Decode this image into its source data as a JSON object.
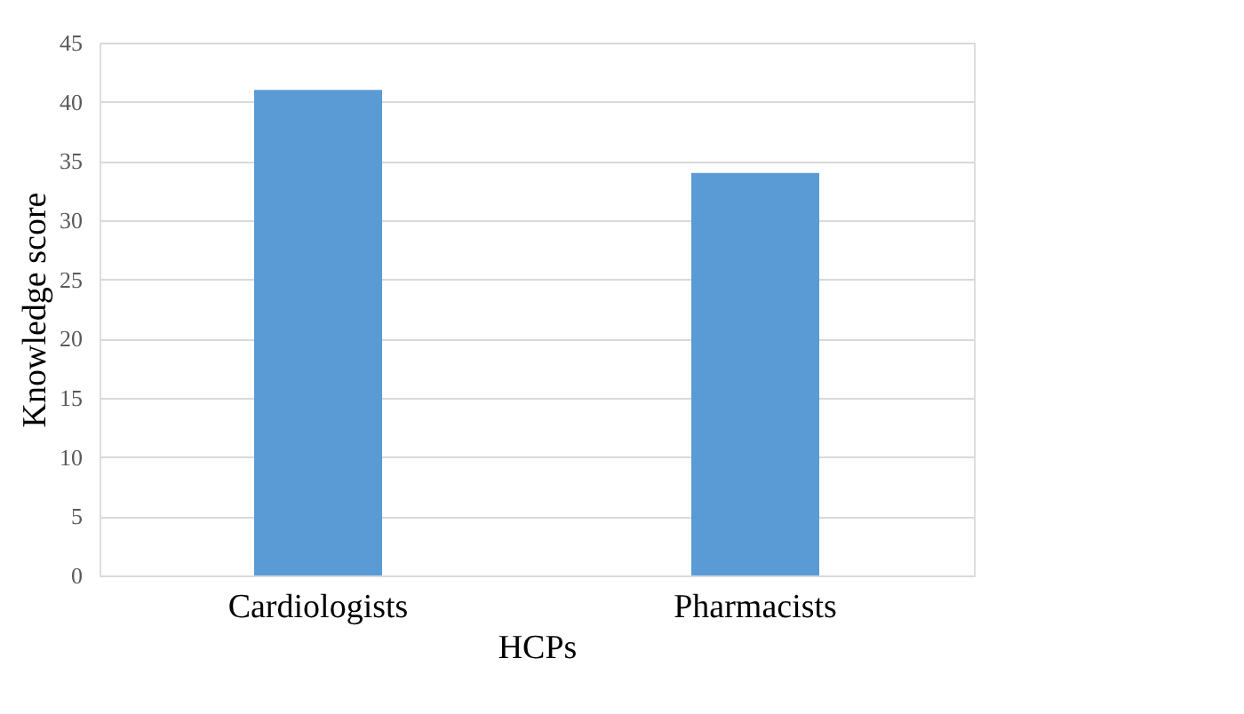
{
  "chart_data": {
    "type": "bar",
    "xlabel": "HCPs",
    "ylabel": "Knowledge score",
    "categories": [
      "Cardiologists",
      "Pharmacists"
    ],
    "values": [
      41,
      34
    ],
    "color": "#5b9bd5",
    "ylim": [
      0,
      45
    ],
    "yticks": [
      0,
      5,
      10,
      15,
      20,
      25,
      30,
      35,
      40,
      45
    ],
    "grid": "y"
  }
}
